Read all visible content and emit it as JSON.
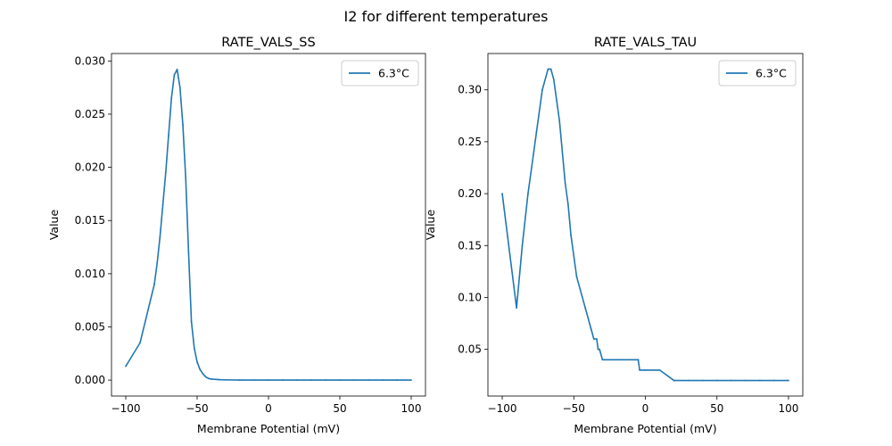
{
  "figure": {
    "suptitle": "I2 for different temperatures"
  },
  "chart_data": [
    {
      "type": "line",
      "title": "RATE_VALS_SS",
      "xlabel": "Membrane Potential (mV)",
      "ylabel": "Value",
      "xlim": [
        -110,
        110
      ],
      "ylim": [
        -0.0015,
        0.0307
      ],
      "xticks": [
        -100,
        -50,
        0,
        50,
        100
      ],
      "xtick_labels": [
        "−100",
        "−50",
        "0",
        "50",
        "100"
      ],
      "yticks": [
        0.0,
        0.005,
        0.01,
        0.015,
        0.02,
        0.025,
        0.03
      ],
      "ytick_labels": [
        "0.000",
        "0.005",
        "0.010",
        "0.015",
        "0.020",
        "0.025",
        "0.030"
      ],
      "legend_position": "top-right",
      "series": [
        {
          "name": "6.3°C",
          "color": "#1f77b4",
          "x": [
            -100,
            -90,
            -80,
            -78,
            -76,
            -74,
            -72,
            -70,
            -68,
            -66,
            -64,
            -62,
            -60,
            -58,
            -56,
            -54,
            -52,
            -50,
            -48,
            -46,
            -44,
            -42,
            -40,
            -35,
            -30,
            -20,
            -10,
            0,
            10,
            20,
            30,
            40,
            50,
            60,
            70,
            80,
            90,
            100
          ],
          "y": [
            0.0013,
            0.0035,
            0.009,
            0.011,
            0.0135,
            0.0165,
            0.0195,
            0.023,
            0.0265,
            0.0287,
            0.0292,
            0.0275,
            0.024,
            0.019,
            0.012,
            0.0055,
            0.003,
            0.0017,
            0.001,
            0.0006,
            0.0003,
            0.00015,
            0.0001,
            5e-05,
            2e-05,
            0.0,
            0.0,
            0.0,
            0.0,
            0.0,
            0.0,
            0.0,
            0.0,
            0.0,
            0.0,
            0.0,
            0.0,
            0.0
          ]
        }
      ]
    },
    {
      "type": "line",
      "title": "RATE_VALS_TAU",
      "xlabel": "Membrane Potential (mV)",
      "ylabel": "Value",
      "xlim": [
        -110,
        110
      ],
      "ylim": [
        0.005,
        0.335
      ],
      "xticks": [
        -100,
        -50,
        0,
        50,
        100
      ],
      "xtick_labels": [
        "−100",
        "−50",
        "0",
        "50",
        "100"
      ],
      "yticks": [
        0.05,
        0.1,
        0.15,
        0.2,
        0.25,
        0.3
      ],
      "ytick_labels": [
        "0.05",
        "0.10",
        "0.15",
        "0.20",
        "0.25",
        "0.30"
      ],
      "legend_position": "top-right",
      "series": [
        {
          "name": "6.3°C",
          "color": "#1f77b4",
          "x": [
            -100,
            -90,
            -86,
            -82,
            -78,
            -76,
            -72,
            -68,
            -66,
            -64,
            -60,
            -56,
            -54,
            -52,
            -48,
            -42,
            -38,
            -36,
            -34,
            -33,
            -32,
            -30,
            -20,
            -10,
            -5,
            -4,
            0,
            10,
            20,
            30,
            40,
            50,
            60,
            70,
            80,
            90,
            100
          ],
          "y": [
            0.2,
            0.09,
            0.15,
            0.2,
            0.24,
            0.26,
            0.3,
            0.32,
            0.32,
            0.31,
            0.27,
            0.21,
            0.19,
            0.16,
            0.12,
            0.09,
            0.07,
            0.06,
            0.06,
            0.05,
            0.05,
            0.04,
            0.04,
            0.04,
            0.04,
            0.03,
            0.03,
            0.03,
            0.02,
            0.02,
            0.02,
            0.02,
            0.02,
            0.02,
            0.02,
            0.02,
            0.02
          ]
        }
      ]
    }
  ]
}
